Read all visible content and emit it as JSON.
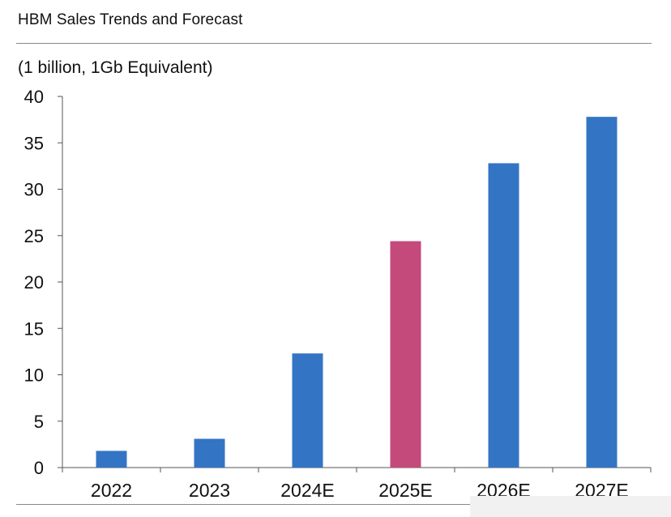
{
  "chart_data": {
    "type": "bar",
    "title": "HBM Sales Trends and Forecast",
    "ylabel": "(1 billion, 1Gb Equivalent)",
    "xlabel": "",
    "categories": [
      "2022",
      "2023",
      "2024E",
      "2025E",
      "2026E",
      "2027E"
    ],
    "values": [
      1.8,
      3.1,
      12.3,
      24.4,
      32.8,
      37.8
    ],
    "highlight_index": 3,
    "ylim": [
      0,
      40
    ],
    "yticks": [
      0,
      5,
      10,
      15,
      20,
      25,
      30,
      35,
      40
    ],
    "grid": false,
    "legend": "none",
    "colors": {
      "bar": "#3474c4",
      "highlight": "#c44a7c",
      "axis": "#555555"
    }
  }
}
